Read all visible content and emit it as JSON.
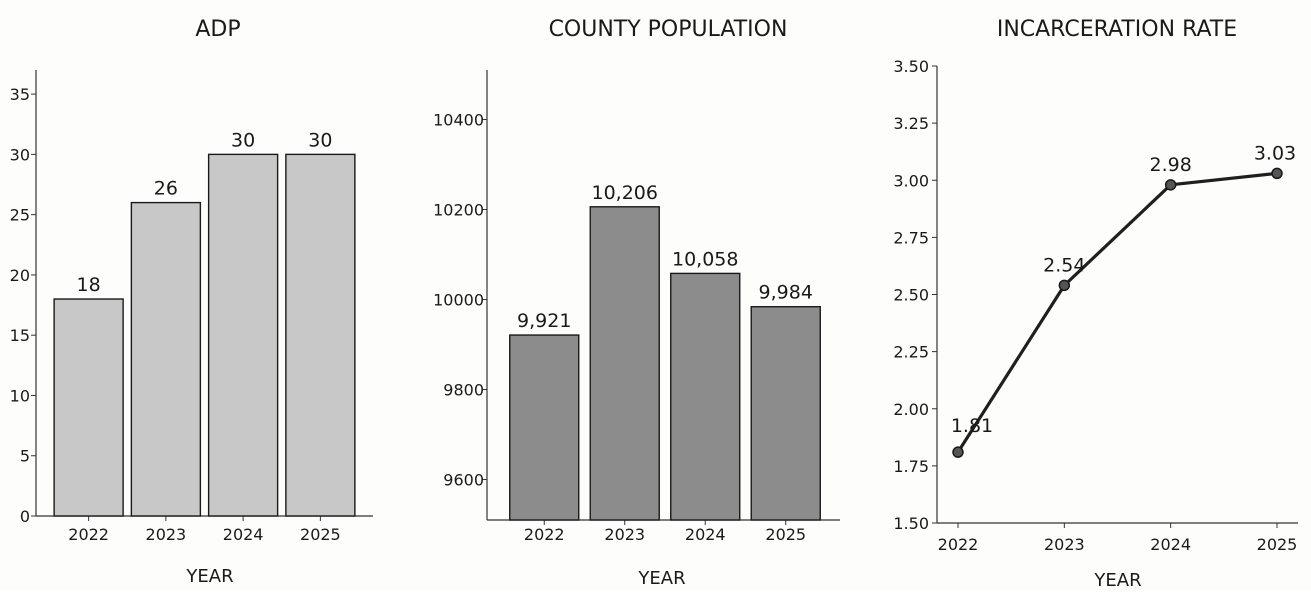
{
  "chart_data": [
    {
      "type": "bar",
      "title": "ADP",
      "xlabel": "YEAR",
      "ylabel": "",
      "categories": [
        "2022",
        "2023",
        "2024",
        "2025"
      ],
      "values": [
        18,
        26,
        30,
        30
      ],
      "data_labels": [
        "18",
        "26",
        "30",
        "30"
      ],
      "ylim": [
        0,
        37
      ],
      "yticks": [
        0,
        5,
        10,
        15,
        20,
        25,
        30,
        35
      ],
      "ytick_labels": [
        "0",
        "5",
        "10",
        "15",
        "20",
        "25",
        "30",
        "35"
      ],
      "grid": false,
      "bar_color": "#c8c8c8"
    },
    {
      "type": "bar",
      "title": "COUNTY POPULATION",
      "xlabel": "YEAR",
      "ylabel": "",
      "categories": [
        "2022",
        "2023",
        "2024",
        "2025"
      ],
      "values": [
        9921,
        10206,
        10058,
        9984
      ],
      "data_labels": [
        "9,921",
        "10,206",
        "10,058",
        "9,984"
      ],
      "ylim": [
        9510,
        10510
      ],
      "yticks": [
        9600,
        9800,
        10000,
        10200,
        10400
      ],
      "ytick_labels": [
        "9600",
        "9800",
        "10000",
        "10200",
        "10400"
      ],
      "grid": false,
      "bar_color": "#8c8c8c"
    },
    {
      "type": "line",
      "title": "INCARCERATION RATE",
      "xlabel": "YEAR",
      "ylabel": "",
      "x": [
        "2022",
        "2023",
        "2024",
        "2025"
      ],
      "values": [
        1.81,
        2.54,
        2.98,
        3.03
      ],
      "data_labels": [
        "1.81",
        "2.54",
        "2.98",
        "3.03"
      ],
      "ylim": [
        1.5,
        3.5
      ],
      "yticks": [
        1.5,
        1.75,
        2.0,
        2.25,
        2.5,
        2.75,
        3.0,
        3.25,
        3.5
      ],
      "ytick_labels": [
        "1.50",
        "1.75",
        "2.00",
        "2.25",
        "2.50",
        "2.75",
        "3.00",
        "3.25",
        "3.50"
      ],
      "grid": false,
      "line_color": "#1f1f1f"
    }
  ]
}
